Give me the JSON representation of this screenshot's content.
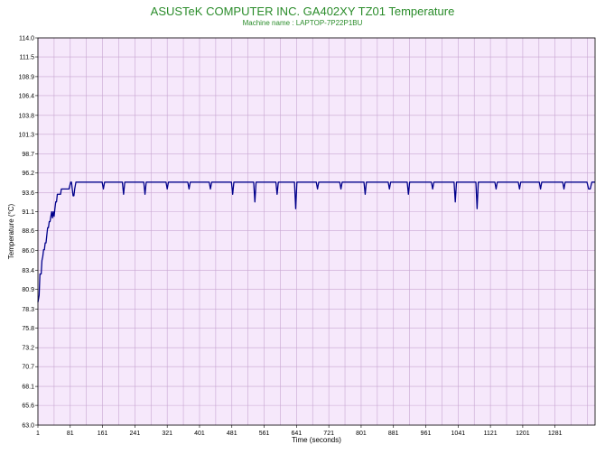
{
  "chart_data": {
    "type": "line",
    "title": "ASUSTeK COMPUTER INC. GA402XY TZ01 Temperature",
    "subtitle": "Machine name : LAPTOP-7P22P1BU",
    "xlabel": "Time (seconds)",
    "ylabel": "Temperature (°C)",
    "xlim": [
      1,
      1380
    ],
    "ylim": [
      63.0,
      114.0
    ],
    "grid": true,
    "x_ticks": [
      1,
      81,
      161,
      241,
      321,
      401,
      481,
      561,
      641,
      721,
      801,
      881,
      961,
      1041,
      1121,
      1201,
      1281
    ],
    "y_ticks": [
      "63.0",
      "65.6",
      "68.1",
      "70.7",
      "73.2",
      "75.8",
      "78.3",
      "80.9",
      "83.4",
      "86.0",
      "88.6",
      "91.1",
      "93.6",
      "96.2",
      "98.7",
      "101.3",
      "103.8",
      "106.4",
      "108.9",
      "111.5",
      "114.0"
    ],
    "colors": {
      "title": "#2a8c2a",
      "subtitle": "#2a8c2a",
      "plot_background": "#f6e8fb",
      "grid": "#c8a6d2",
      "line": "#00008b"
    },
    "series": [
      {
        "x": [
          1,
          4,
          6,
          9,
          11,
          13,
          15,
          17,
          19,
          21,
          23,
          25,
          27,
          29,
          31,
          33,
          35,
          37,
          39,
          41,
          43,
          45,
          47,
          49,
          51,
          53,
          55,
          57,
          59,
          62,
          64,
          66,
          68,
          70,
          74,
          78,
          82,
          84,
          86,
          88,
          90,
          92,
          95,
          100,
          108,
          116,
          160,
          163,
          166,
          210,
          213,
          216,
          263,
          266,
          269,
          318,
          321,
          324,
          372,
          375,
          378,
          425,
          428,
          431,
          480,
          483,
          486,
          535,
          538,
          541,
          590,
          593,
          596,
          636,
          639,
          642,
          690,
          693,
          696,
          748,
          751,
          754,
          808,
          811,
          814,
          868,
          871,
          874,
          915,
          918,
          921,
          975,
          978,
          981,
          1031,
          1034,
          1037,
          1085,
          1088,
          1091,
          1132,
          1135,
          1138,
          1190,
          1193,
          1196,
          1242,
          1245,
          1248,
          1300,
          1303,
          1306,
          1360,
          1364,
          1368,
          1372,
          1380
        ],
        "values": [
          79.2,
          80.1,
          82.9,
          82.9,
          84.7,
          85.2,
          86.1,
          86.1,
          87.0,
          87.0,
          88.0,
          89.0,
          89.0,
          89.8,
          89.8,
          90.5,
          91.1,
          90.3,
          91.1,
          90.5,
          91.5,
          92.4,
          92.4,
          93.4,
          93.4,
          93.4,
          93.4,
          93.4,
          94.1,
          94.1,
          94.1,
          94.1,
          94.1,
          94.1,
          94.1,
          94.1,
          95.0,
          95.0,
          94.1,
          93.2,
          93.2,
          94.1,
          95.0,
          95.0,
          95.0,
          95.0,
          95.0,
          94.1,
          95.0,
          95.0,
          93.4,
          95.0,
          95.0,
          93.4,
          95.0,
          95.0,
          94.1,
          95.0,
          95.0,
          94.1,
          95.0,
          95.0,
          94.1,
          95.0,
          95.0,
          93.4,
          95.0,
          95.0,
          92.4,
          95.0,
          95.0,
          93.4,
          95.0,
          95.0,
          91.5,
          95.0,
          95.0,
          94.1,
          95.0,
          95.0,
          94.1,
          95.0,
          95.0,
          93.4,
          95.0,
          95.0,
          94.1,
          95.0,
          95.0,
          93.4,
          95.0,
          95.0,
          94.1,
          95.0,
          95.0,
          92.4,
          95.0,
          95.0,
          91.5,
          95.0,
          95.0,
          94.1,
          95.0,
          95.0,
          94.1,
          95.0,
          95.0,
          94.1,
          95.0,
          95.0,
          94.1,
          95.0,
          95.0,
          94.1,
          94.1,
          95.0,
          95.0
        ]
      }
    ]
  }
}
